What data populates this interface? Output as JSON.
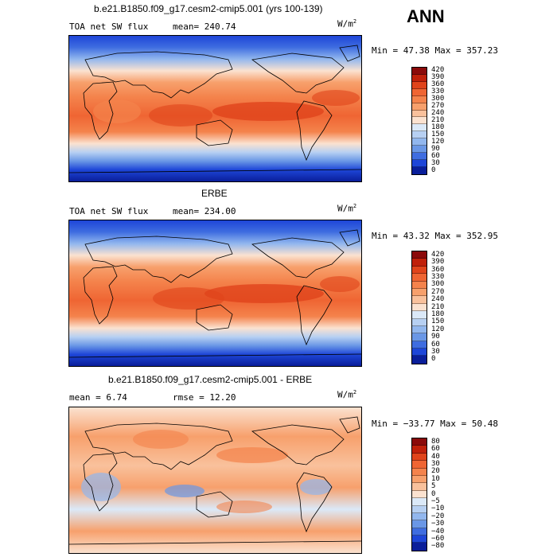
{
  "season": "ANN",
  "units_base": "W/m",
  "units_exp": "2",
  "panels": [
    {
      "heading": "b.e21.B1850.f09_g17.cesm2-cmip5.001 (yrs 100-139)",
      "left_label": "TOA net SW flux",
      "mid_label": "mean= 240.74",
      "minmax": "Min =  47.38 Max = 357.23",
      "levels": [
        "420",
        "390",
        "360",
        "330",
        "300",
        "270",
        "240",
        "210",
        "180",
        "150",
        "120",
        "90",
        "60",
        "30",
        "0"
      ],
      "colors": [
        "#8b0a0a",
        "#c0200a",
        "#e0441b",
        "#ef6533",
        "#f4834c",
        "#f7a06c",
        "#f9c19c",
        "#fbe2d0",
        "#dbe9f8",
        "#b7d0f2",
        "#92b7ee",
        "#6a97e6",
        "#3f6de0",
        "#1e46d8",
        "#0a1e9a"
      ]
    },
    {
      "heading": "ERBE",
      "left_label": "TOA net SW flux",
      "mid_label": "mean= 234.00",
      "minmax": "Min =  43.32 Max = 352.95",
      "levels": [
        "420",
        "390",
        "360",
        "330",
        "300",
        "270",
        "240",
        "210",
        "180",
        "150",
        "120",
        "90",
        "60",
        "30",
        "0"
      ],
      "colors": [
        "#8b0a0a",
        "#c0200a",
        "#e0441b",
        "#ef6533",
        "#f4834c",
        "#f7a06c",
        "#f9c19c",
        "#fbe2d0",
        "#dbe9f8",
        "#b7d0f2",
        "#92b7ee",
        "#6a97e6",
        "#3f6de0",
        "#1e46d8",
        "#0a1e9a"
      ]
    },
    {
      "heading": "b.e21.B1850.f09_g17.cesm2-cmip5.001 - ERBE",
      "left_label": "mean =   6.74",
      "mid_label": "rmse =  12.20",
      "minmax": "Min = −33.77 Max =  50.48",
      "levels": [
        "80",
        "60",
        "40",
        "30",
        "20",
        "10",
        "5",
        "0",
        "−5",
        "−10",
        "−20",
        "−30",
        "−40",
        "−60",
        "−80"
      ],
      "colors": [
        "#8b0a0a",
        "#c0200a",
        "#e0441b",
        "#ef6533",
        "#f4834c",
        "#f7a06c",
        "#f9c19c",
        "#fbe2d0",
        "#dbe9f8",
        "#b7d0f2",
        "#92b7ee",
        "#6a97e6",
        "#3f6de0",
        "#1e46d8",
        "#0a1e9a"
      ]
    }
  ]
}
